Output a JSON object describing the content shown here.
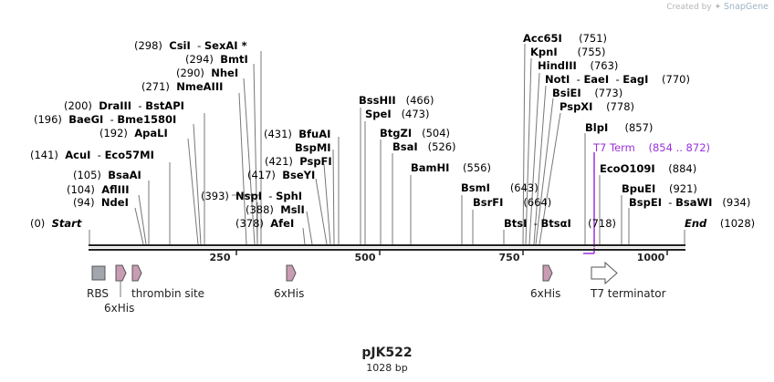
{
  "credit": {
    "prefix": "Created by",
    "brand": "SnapGene"
  },
  "plasmid": {
    "name": "pJK522",
    "length_label": "1028 bp",
    "length": 1028
  },
  "scale": [
    {
      "bp": 250,
      "label": "250"
    },
    {
      "bp": 500,
      "label": "500"
    },
    {
      "bp": 750,
      "label": "750"
    },
    {
      "bp": 1000,
      "label": "1000"
    }
  ],
  "sites": [
    {
      "text": "Start",
      "pos": "(0)",
      "italic": true
    },
    {
      "text": "NdeI",
      "pos": "(94)"
    },
    {
      "text": "AflIII",
      "pos": "(104)"
    },
    {
      "text": "BsaAI",
      "pos": "(105)"
    },
    {
      "text": "AcuI",
      "text2": "Eco57MI",
      "pos": "(141)"
    },
    {
      "text": "ApaLI",
      "pos": "(192)"
    },
    {
      "text": "BaeGI",
      "text2": "Bme1580I",
      "pos": "(196)"
    },
    {
      "text": "DraIII",
      "text2": "BstAPI",
      "pos": "(200)"
    },
    {
      "text": "NmeAIII",
      "pos": "(271)"
    },
    {
      "text": "NheI",
      "pos": "(290)"
    },
    {
      "text": "BmtI",
      "pos": "(294)"
    },
    {
      "text": "CsiI",
      "text2": "SexAI *",
      "pos": "(298)"
    },
    {
      "text": "",
      "pos": "(393)"
    },
    {
      "text": "NspI",
      "text2": "SphI",
      "pos": ""
    },
    {
      "text": "MslI",
      "pos": "(388)"
    },
    {
      "text": "AfeI",
      "pos": "(378)"
    },
    {
      "text": "BseYI",
      "pos": "(417)"
    },
    {
      "text": "PspFI",
      "pos": "(421)"
    },
    {
      "text": "BspMI",
      "pos": ""
    },
    {
      "text": "BfuAI",
      "pos": "(431)"
    },
    {
      "text": "BssHII",
      "pos": "(466)"
    },
    {
      "text": "SpeI",
      "pos": "(473)"
    },
    {
      "text": "BtgZI",
      "pos": "(504)"
    },
    {
      "text": "BsaI",
      "pos": "(526)"
    },
    {
      "text": "BamHI",
      "pos": "(556)"
    },
    {
      "text": "BsmI",
      "pos": "(643)"
    },
    {
      "text": "BsrFI",
      "pos": "(664)"
    },
    {
      "text": "BtsI",
      "text2": "BtsαI",
      "pos": "(718)"
    },
    {
      "text": "Acc65I",
      "pos": "(751)"
    },
    {
      "text": "KpnI",
      "pos": "(755)"
    },
    {
      "text": "HindIII",
      "pos": "(763)"
    },
    {
      "text": "NotI",
      "text2": "EaeI",
      "text3": "EagI",
      "pos": "(770)"
    },
    {
      "text": "BsiEI",
      "pos": "(773)"
    },
    {
      "text": "PspXI",
      "pos": "(778)"
    },
    {
      "text": "BlpI",
      "pos": "(857)"
    },
    {
      "text": "T7 Term",
      "pos": "(854 .. 872)",
      "purple": true
    },
    {
      "text": "EcoO109I",
      "pos": "(884)"
    },
    {
      "text": "BpuEI",
      "pos": "(921)"
    },
    {
      "text": "BspEI",
      "text2": "BsaWI",
      "pos": "(934)"
    },
    {
      "text": "End",
      "pos": "(1028)",
      "italic": true
    }
  ],
  "features": [
    {
      "name": "RBS",
      "type": "box",
      "color": "#a2a6ad"
    },
    {
      "name": "6xHis",
      "type": "arrow",
      "color": "#c99cb4"
    },
    {
      "name": "thrombin site",
      "type": "arrow",
      "color": "#c99cb4"
    },
    {
      "name": "6xHis",
      "type": "arrow",
      "color": "#c99cb4"
    },
    {
      "name": "6xHis",
      "type": "arrow",
      "color": "#c99cb4"
    },
    {
      "name": "T7 terminator",
      "type": "arrow",
      "color": "#ffffff"
    }
  ]
}
